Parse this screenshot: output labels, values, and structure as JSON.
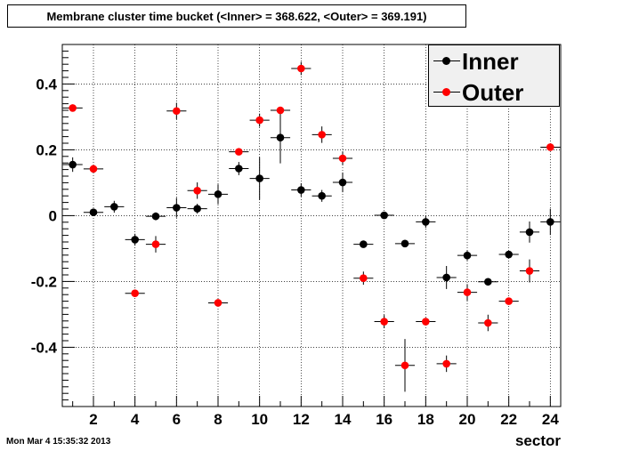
{
  "header": {
    "title": "Membrane cluster time bucket (<Inner> = 368.622, <Outer> = 369.191)"
  },
  "footer": {
    "timestamp": "Mon Mar  4 15:35:32 2013"
  },
  "chart_data": {
    "type": "scatter",
    "title": "Membrane cluster time bucket (<Inner> = 368.622, <Outer> = 369.191)",
    "xlabel": "sector",
    "ylabel": "",
    "xlim": [
      0.5,
      24.5
    ],
    "ylim": [
      -0.58,
      0.52
    ],
    "grid": true,
    "legend_position": "top-right",
    "x_ticks": [
      "2",
      "4",
      "6",
      "8",
      "10",
      "12",
      "14",
      "16",
      "18",
      "20",
      "22",
      "24"
    ],
    "y_ticks": [
      "0.4",
      "0.2",
      "0",
      "-0.2",
      "-0.4"
    ],
    "series": [
      {
        "name": "Inner",
        "color": "#000000",
        "x": [
          1,
          2,
          3,
          4,
          5,
          6,
          7,
          8,
          9,
          10,
          11,
          12,
          13,
          14,
          15,
          16,
          17,
          18,
          19,
          20,
          21,
          22,
          23,
          24
        ],
        "y": [
          0.155,
          0.01,
          0.027,
          -0.073,
          -0.002,
          0.024,
          0.021,
          0.065,
          0.143,
          0.113,
          0.237,
          0.078,
          0.06,
          0.101,
          -0.087,
          0.001,
          -0.085,
          -0.019,
          -0.188,
          -0.121,
          -0.201,
          -0.118,
          -0.05,
          -0.019
        ],
        "yerr": [
          0.022,
          0.01,
          0.018,
          0.018,
          0.012,
          0.03,
          0.015,
          0.03,
          0.02,
          0.065,
          0.078,
          0.02,
          0.018,
          0.03,
          0.01,
          0.01,
          0.01,
          0.018,
          0.035,
          0.015,
          0.01,
          0.01,
          0.032,
          0.04
        ]
      },
      {
        "name": "Outer",
        "color": "#ff0000",
        "x": [
          1,
          2,
          3,
          4,
          5,
          6,
          7,
          8,
          9,
          10,
          11,
          12,
          13,
          14,
          15,
          16,
          17,
          18,
          19,
          20,
          21,
          22,
          23,
          24
        ],
        "y": [
          0.327,
          0.142,
          null,
          -0.236,
          -0.087,
          0.318,
          0.076,
          -0.265,
          0.194,
          0.29,
          0.32,
          0.447,
          0.246,
          0.174,
          -0.19,
          -0.322,
          -0.455,
          -0.322,
          -0.45,
          -0.233,
          -0.326,
          -0.26,
          -0.168,
          0.208
        ],
        "yerr": [
          0.01,
          0.012,
          null,
          0.01,
          0.025,
          0.025,
          0.025,
          0.01,
          0.01,
          0.02,
          0.01,
          0.02,
          0.025,
          0.02,
          0.02,
          0.02,
          0.08,
          0.01,
          0.025,
          0.025,
          0.025,
          0.01,
          0.035,
          0.01
        ]
      }
    ]
  }
}
